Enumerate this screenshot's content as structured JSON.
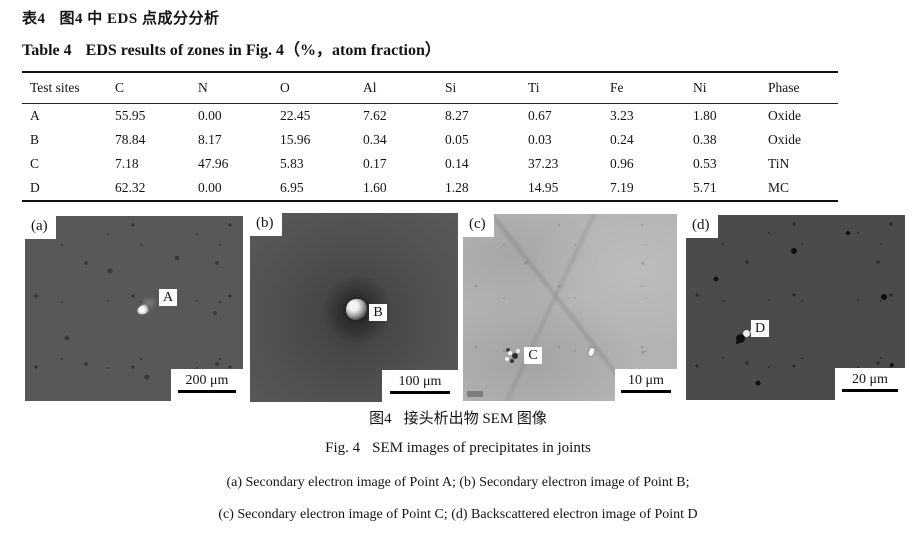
{
  "page": {
    "title_cn_label": "表4",
    "title_cn_text": "图4 中 EDS 点成分分析",
    "title_en_label": "Table 4",
    "title_en_text": "EDS results of zones in Fig. 4（%，atom fraction）"
  },
  "table": {
    "headers": [
      "Test sites",
      "C",
      "N",
      "O",
      "Al",
      "Si",
      "Ti",
      "Fe",
      "Ni",
      "Phase"
    ],
    "rows": [
      [
        "A",
        "55.95",
        "0.00",
        "22.45",
        "7.62",
        "8.27",
        "0.67",
        "3.23",
        "1.80",
        "Oxide"
      ],
      [
        "B",
        "78.84",
        "8.17",
        "15.96",
        "0.34",
        "0.05",
        "0.03",
        "0.24",
        "0.38",
        "Oxide"
      ],
      [
        "C",
        "7.18",
        "47.96",
        "5.83",
        "0.17",
        "0.14",
        "37.23",
        "0.96",
        "0.53",
        "TiN"
      ],
      [
        "D",
        "62.32",
        "0.00",
        "6.95",
        "1.60",
        "1.28",
        "14.95",
        "7.19",
        "5.71",
        "MC"
      ]
    ]
  },
  "figure": {
    "panels": [
      {
        "id": "a",
        "corner_label": "(a)",
        "point_label": "A",
        "scale_label": "200 μm",
        "bg": "#585858"
      },
      {
        "id": "b",
        "corner_label": "(b)",
        "point_label": "B",
        "scale_label": "100 μm",
        "bg": "#4f4f4f"
      },
      {
        "id": "c",
        "corner_label": "(c)",
        "point_label": "C",
        "scale_label": "10 μm",
        "bg": "#b3b3b3"
      },
      {
        "id": "d",
        "corner_label": "(d)",
        "point_label": "D",
        "scale_label": "20 μm",
        "bg": "#4b4b4b"
      }
    ],
    "caption_cn_label": "图4",
    "caption_cn_text": "接头析出物 SEM 图像",
    "caption_en_label": "Fig. 4",
    "caption_en_text": "SEM images of precipitates in joints",
    "subcaption_ab": "(a) Secondary electron image of Point A; (b) Secondary electron image of Point B;",
    "subcaption_cd": "(c) Secondary electron image of Point C; (d) Backscattered electron image of Point D"
  },
  "colors": {
    "text": "#141414",
    "rule": "#111111",
    "panel_a_bg": "#585858",
    "panel_b_bg": "#4f4f4f",
    "panel_c_bg": "#b3b3b3",
    "panel_d_bg": "#4b4b4b"
  }
}
